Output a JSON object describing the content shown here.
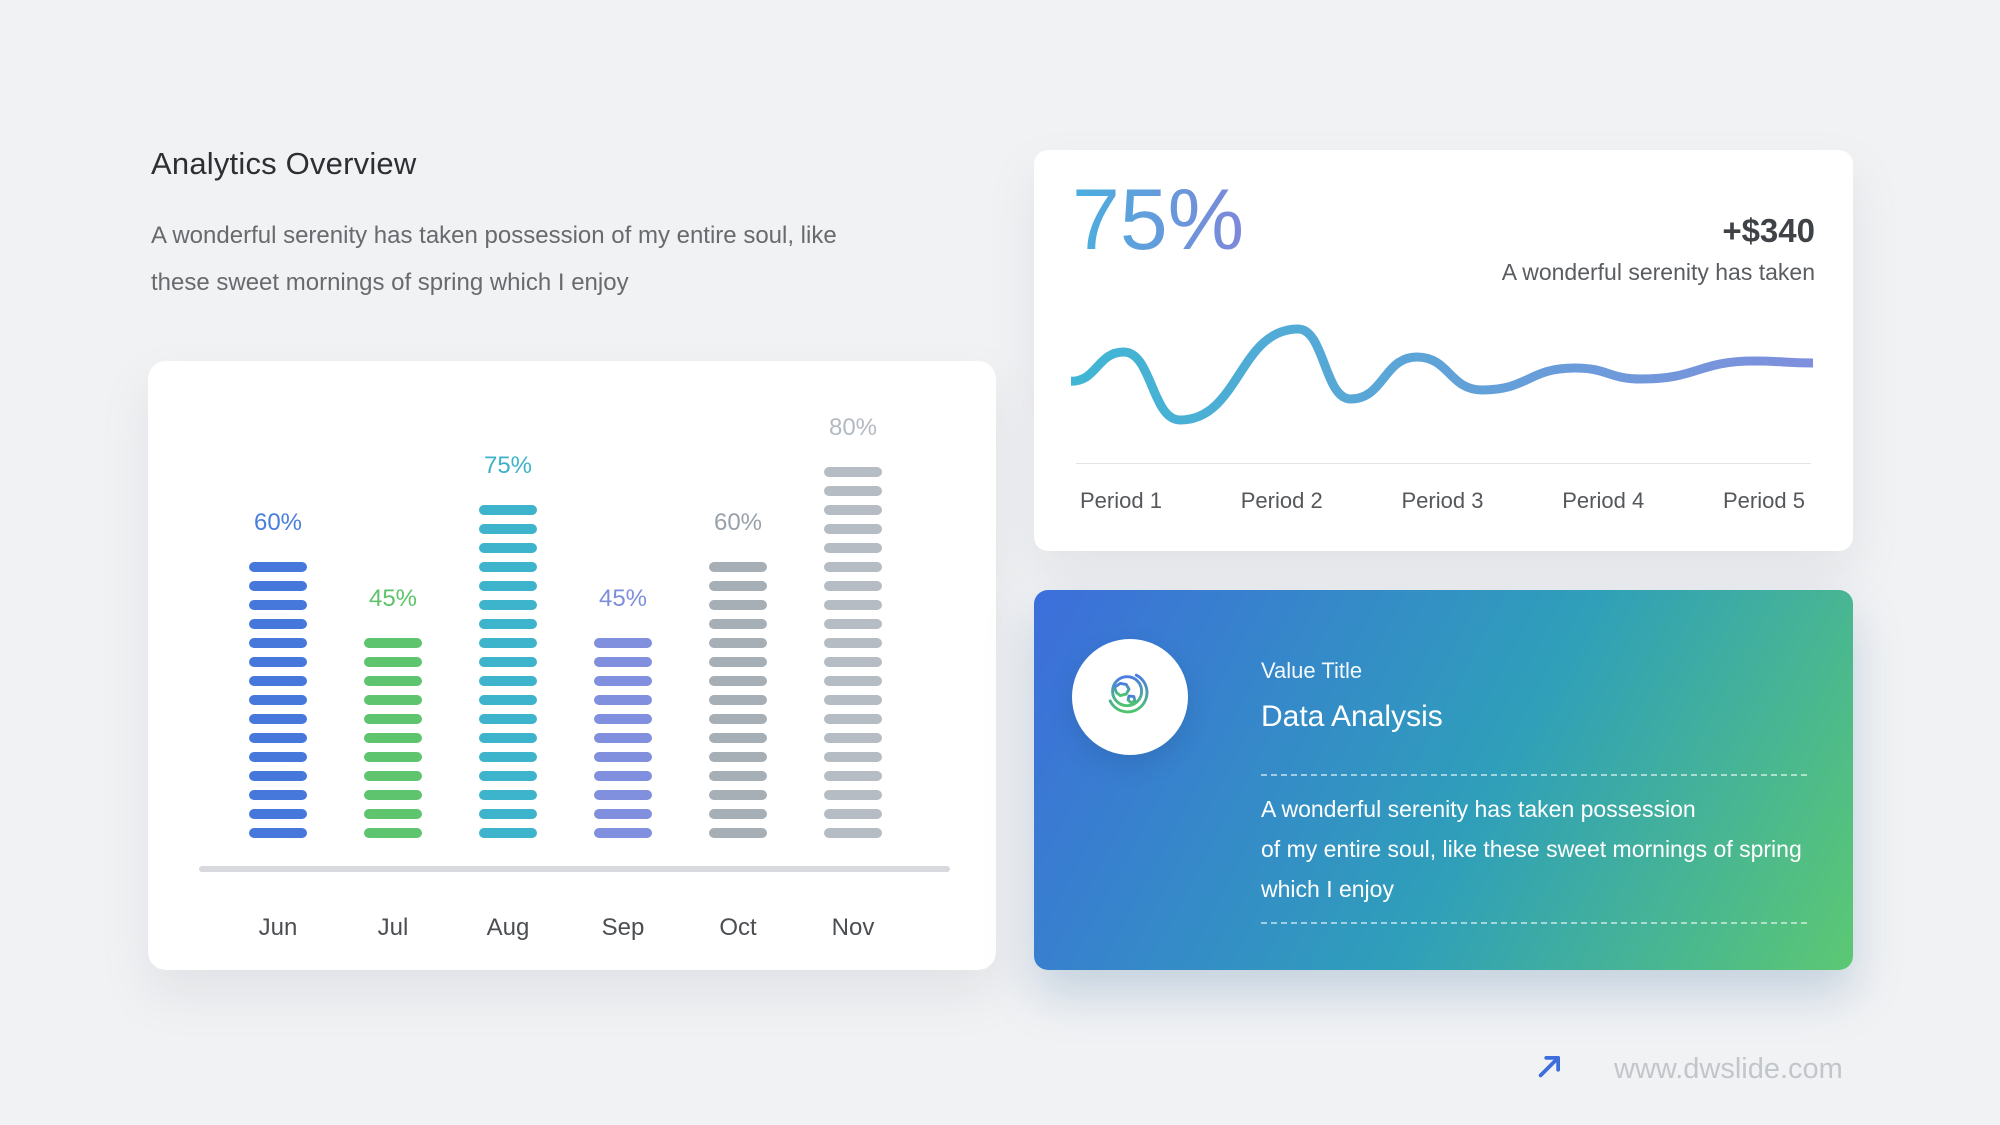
{
  "page": {
    "title": "Analytics Overview",
    "description_lines": [
      "A wonderful serenity has taken possession of my entire soul, like",
      "these sweet mornings of spring which I enjoy"
    ],
    "background_color": "#f1f2f4"
  },
  "chart_data": [
    {
      "type": "bar",
      "categories": [
        "Jun",
        "Jul",
        "Aug",
        "Sep",
        "Oct",
        "Nov"
      ],
      "values": [
        60,
        45,
        75,
        45,
        60,
        80
      ],
      "value_labels": [
        "60%",
        "45%",
        "75%",
        "45%",
        "60%",
        "80%"
      ],
      "bar_colors": [
        "#4678dc",
        "#5fc46e",
        "#3eb3cc",
        "#8090de",
        "#a6aeb6",
        "#b5bcc3"
      ],
      "label_colors": [
        "#4a7edb",
        "#5dc469",
        "#3cb3c9",
        "#7d8edd",
        "#98a1a9",
        "#b2bac2"
      ],
      "segments_per_bar": [
        15,
        11,
        18,
        11,
        15,
        20
      ],
      "segment_style": "stacked rounded dashes, one dash ≈ 4%",
      "ylim": [
        0,
        100
      ],
      "unit": "%",
      "grid": false,
      "axis_line_color": "#d7d9dc"
    },
    {
      "type": "line",
      "x_labels": [
        "Period 1",
        "Period 2",
        "Period 3",
        "Period 4",
        "Period 5"
      ],
      "points": [
        [
          0.0,
          0.51
        ],
        [
          0.071,
          0.285
        ],
        [
          0.147,
          0.808
        ],
        [
          0.306,
          0.108
        ],
        [
          0.377,
          0.646
        ],
        [
          0.466,
          0.323
        ],
        [
          0.554,
          0.577
        ],
        [
          0.679,
          0.408
        ],
        [
          0.769,
          0.492
        ],
        [
          0.921,
          0.354
        ],
        [
          1.0,
          0.369
        ]
      ],
      "description": "Smooth damped wave, amplitude decreasing from left to right",
      "line_gradient": [
        "#3fb6d3",
        "#7f8fdd"
      ],
      "grid": false,
      "legend": false
    }
  ],
  "stats_card": {
    "headline": "75%",
    "headline_gradient": [
      "#4caede",
      "#7b89da"
    ],
    "delta": "+$340",
    "note": "A wonderful serenity has taken"
  },
  "info_card": {
    "icon": "globe-icon",
    "kicker": "Value Title",
    "title": "Data Analysis",
    "body_lines": [
      "A wonderful serenity has taken possession",
      "of my entire soul, like these sweet mornings of spring",
      "which I enjoy"
    ],
    "gradient": [
      "#3d6edb",
      "#2f9fba",
      "#5cc873"
    ]
  },
  "footer": {
    "url": "www.dwslide.com",
    "arrow_color": "#3e6edb"
  }
}
